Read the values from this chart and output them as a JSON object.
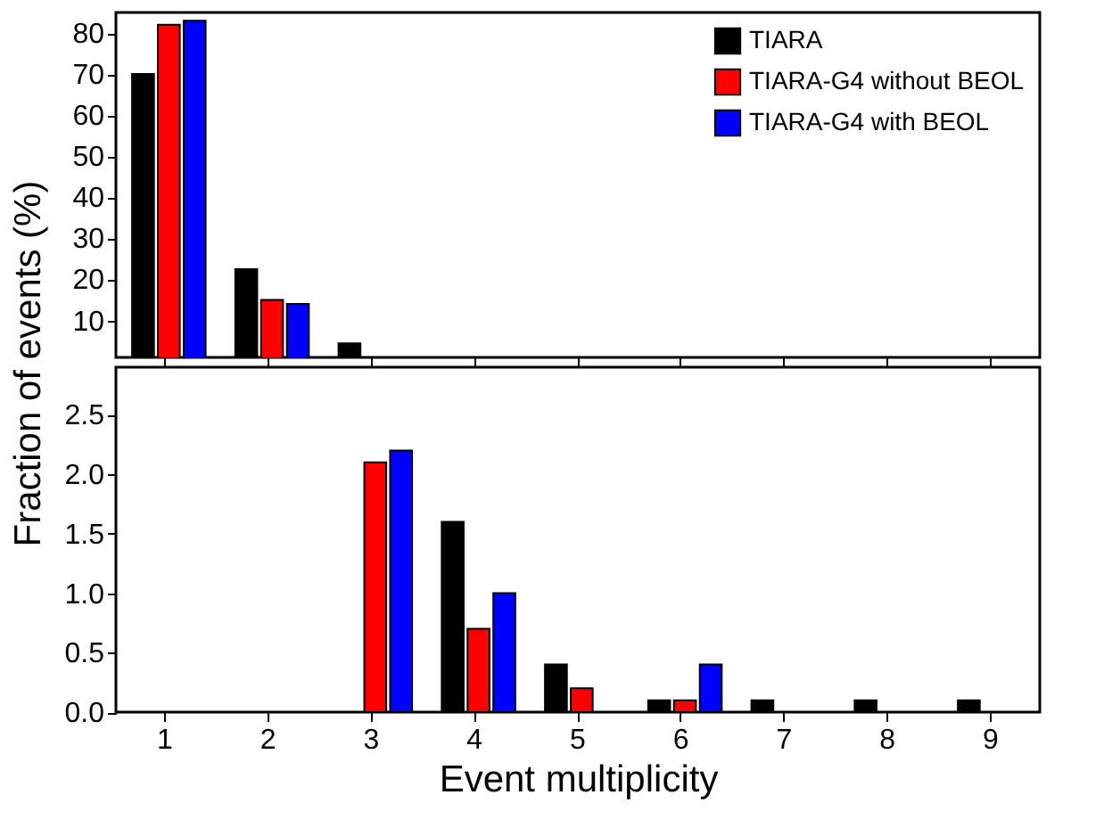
{
  "chart_data": [
    {
      "type": "bar",
      "categories": [
        "1",
        "2",
        "3",
        "4",
        "5",
        "6",
        "7",
        "8",
        "9"
      ],
      "series": [
        {
          "name": "TIARA",
          "color": "#000000",
          "values": [
            70,
            22.5,
            4.4,
            null,
            null,
            null,
            null,
            null,
            null
          ]
        },
        {
          "name": "TIARA-G4 without BEOL",
          "color": "#ff0000",
          "values": [
            82,
            15,
            null,
            null,
            null,
            null,
            null,
            null,
            null
          ]
        },
        {
          "name": "TIARA-G4 with BEOL",
          "color": "#0000ff",
          "values": [
            83,
            14,
            null,
            null,
            null,
            null,
            null,
            null,
            null
          ]
        }
      ],
      "ylim": [
        1,
        85
      ],
      "yticks": [
        10,
        20,
        30,
        40,
        50,
        60,
        70,
        80
      ],
      "tick_labels": "y",
      "grid": false,
      "legend": "top right"
    },
    {
      "type": "bar",
      "xlabel": "Event multiplicity",
      "ylabel": "Fraction of events (%)",
      "categories": [
        "1",
        "2",
        "3",
        "4",
        "5",
        "6",
        "7",
        "8",
        "9"
      ],
      "series": [
        {
          "color": "#000000",
          "values": [
            null,
            null,
            null,
            1.6,
            0.4,
            0.1,
            0.1,
            0.1,
            0.1
          ]
        },
        {
          "color": "#ff0000",
          "values": [
            null,
            null,
            2.1,
            0.7,
            0.2,
            0.1,
            null,
            null,
            null
          ]
        },
        {
          "color": "#0000ff",
          "values": [
            null,
            null,
            2.2,
            1.0,
            null,
            0.4,
            null,
            null,
            null
          ]
        }
      ],
      "ylim": [
        0,
        2.9
      ],
      "yticks": [
        {
          "value": 0,
          "label": "0.0"
        },
        0.5,
        {
          "value": 1,
          "label": "1.0"
        },
        1.5,
        {
          "value": 2,
          "label": "2.0"
        },
        2.5
      ],
      "grid": false
    }
  ]
}
